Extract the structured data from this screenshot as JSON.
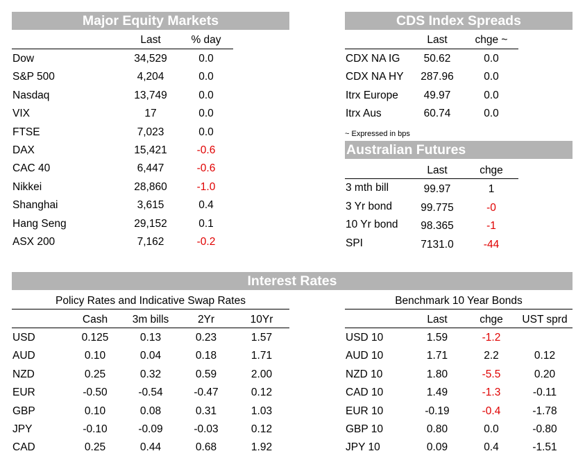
{
  "equity": {
    "title": "Major Equity Markets",
    "headers": [
      "Last",
      "% day"
    ],
    "rows": [
      {
        "name": "Dow",
        "last": "34,529",
        "pct": "0.0",
        "neg": false
      },
      {
        "name": "S&P 500",
        "last": "4,204",
        "pct": "0.0",
        "neg": false
      },
      {
        "name": "Nasdaq",
        "last": "13,749",
        "pct": "0.0",
        "neg": false
      },
      {
        "name": "VIX",
        "last": "17",
        "pct": "0.0",
        "neg": false
      },
      {
        "name": "FTSE",
        "last": "7,023",
        "pct": "0.0",
        "neg": false
      },
      {
        "name": "DAX",
        "last": "15,421",
        "pct": "-0.6",
        "neg": true
      },
      {
        "name": "CAC 40",
        "last": "6,447",
        "pct": "-0.6",
        "neg": true
      },
      {
        "name": "Nikkei",
        "last": "28,860",
        "pct": "-1.0",
        "neg": true
      },
      {
        "name": "Shanghai",
        "last": "3,615",
        "pct": "0.4",
        "neg": false
      },
      {
        "name": "Hang Seng",
        "last": "29,152",
        "pct": "0.1",
        "neg": false
      },
      {
        "name": "ASX 200",
        "last": "7,162",
        "pct": "-0.2",
        "neg": true
      }
    ]
  },
  "cds": {
    "title": "CDS Index Spreads",
    "headers": [
      "Last",
      "chge ~"
    ],
    "rows": [
      {
        "name": "CDX NA IG",
        "last": "50.62",
        "chge": "0.0"
      },
      {
        "name": "CDX NA HY",
        "last": "287.96",
        "chge": "0.0"
      },
      {
        "name": "Itrx Europe",
        "last": "49.97",
        "chge": "0.0"
      },
      {
        "name": "Itrx Aus",
        "last": "60.74",
        "chge": "0.0"
      }
    ],
    "note": "~ Expressed in bps"
  },
  "futures": {
    "title": "Australian Futures",
    "headers": [
      "Last",
      "chge"
    ],
    "rows": [
      {
        "name": "3 mth bill",
        "last": "99.97",
        "chge": "1",
        "neg": false
      },
      {
        "name": "3 Yr bond",
        "last": "99.775",
        "chge": "-0",
        "neg": true
      },
      {
        "name": "10 Yr bond",
        "last": "98.365",
        "chge": "-1",
        "neg": true
      },
      {
        "name": "SPI",
        "last": "7131.0",
        "chge": "-44",
        "neg": true
      }
    ]
  },
  "interest": {
    "title": "Interest Rates",
    "policy": {
      "subtitle": "Policy Rates and Indicative Swap Rates",
      "headers": [
        "Cash",
        "3m bills",
        "2Yr",
        "10Yr"
      ],
      "rows": [
        {
          "name": "USD",
          "vals": [
            "0.125",
            "0.13",
            "0.23",
            "1.57"
          ]
        },
        {
          "name": "AUD",
          "vals": [
            "0.10",
            "0.04",
            "0.18",
            "1.71"
          ]
        },
        {
          "name": "NZD",
          "vals": [
            "0.25",
            "0.32",
            "0.59",
            "2.00"
          ]
        },
        {
          "name": "EUR",
          "vals": [
            "-0.50",
            "-0.54",
            "-0.47",
            "0.12"
          ]
        },
        {
          "name": "GBP",
          "vals": [
            "0.10",
            "0.08",
            "0.31",
            "1.03"
          ]
        },
        {
          "name": "JPY",
          "vals": [
            "-0.10",
            "-0.09",
            "-0.03",
            "0.12"
          ]
        },
        {
          "name": "CAD",
          "vals": [
            "0.25",
            "0.44",
            "0.68",
            "1.92"
          ]
        }
      ]
    },
    "bonds": {
      "subtitle": "Benchmark 10 Year Bonds",
      "headers": [
        "Last",
        "chge",
        "UST sprd"
      ],
      "rows": [
        {
          "name": "USD 10",
          "last": "1.59",
          "chge": "-1.2",
          "neg": true,
          "sprd": ""
        },
        {
          "name": "AUD 10",
          "last": "1.71",
          "chge": "2.2",
          "neg": false,
          "sprd": "0.12"
        },
        {
          "name": "NZD 10",
          "last": "1.80",
          "chge": "-5.5",
          "neg": true,
          "sprd": "0.20"
        },
        {
          "name": "CAD 10",
          "last": "1.49",
          "chge": "-1.3",
          "neg": true,
          "sprd": "-0.11"
        },
        {
          "name": "EUR 10",
          "last": "-0.19",
          "chge": "-0.4",
          "neg": true,
          "sprd": "-1.78"
        },
        {
          "name": "GBP 10",
          "last": "0.80",
          "chge": "0.0",
          "neg": false,
          "sprd": "-0.80"
        },
        {
          "name": "JPY 10",
          "last": "0.09",
          "chge": "0.4",
          "neg": false,
          "sprd": "-1.51"
        }
      ]
    }
  },
  "colors": {
    "banner": "#b3b3b3",
    "negative": "#e00000"
  }
}
